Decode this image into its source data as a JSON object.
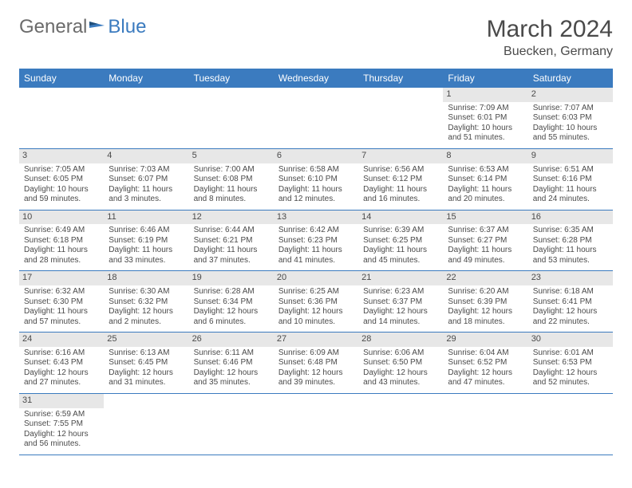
{
  "logo": {
    "part1": "General",
    "part2": "Blue"
  },
  "title": "March 2024",
  "location": "Buecken, Germany",
  "colors": {
    "header_bg": "#3b7bbf",
    "header_text": "#ffffff",
    "daynum_bg": "#e7e7e7",
    "cell_border": "#3b7bbf",
    "body_text": "#4a4a4a",
    "logo_gray": "#6b6b6b",
    "logo_blue": "#3b7bbf"
  },
  "day_headers": [
    "Sunday",
    "Monday",
    "Tuesday",
    "Wednesday",
    "Thursday",
    "Friday",
    "Saturday"
  ],
  "weeks": [
    [
      {
        "empty": true
      },
      {
        "empty": true
      },
      {
        "empty": true
      },
      {
        "empty": true
      },
      {
        "empty": true
      },
      {
        "n": "1",
        "sr": "Sunrise: 7:09 AM",
        "ss": "Sunset: 6:01 PM",
        "d1": "Daylight: 10 hours",
        "d2": "and 51 minutes."
      },
      {
        "n": "2",
        "sr": "Sunrise: 7:07 AM",
        "ss": "Sunset: 6:03 PM",
        "d1": "Daylight: 10 hours",
        "d2": "and 55 minutes."
      }
    ],
    [
      {
        "n": "3",
        "sr": "Sunrise: 7:05 AM",
        "ss": "Sunset: 6:05 PM",
        "d1": "Daylight: 10 hours",
        "d2": "and 59 minutes."
      },
      {
        "n": "4",
        "sr": "Sunrise: 7:03 AM",
        "ss": "Sunset: 6:07 PM",
        "d1": "Daylight: 11 hours",
        "d2": "and 3 minutes."
      },
      {
        "n": "5",
        "sr": "Sunrise: 7:00 AM",
        "ss": "Sunset: 6:08 PM",
        "d1": "Daylight: 11 hours",
        "d2": "and 8 minutes."
      },
      {
        "n": "6",
        "sr": "Sunrise: 6:58 AM",
        "ss": "Sunset: 6:10 PM",
        "d1": "Daylight: 11 hours",
        "d2": "and 12 minutes."
      },
      {
        "n": "7",
        "sr": "Sunrise: 6:56 AM",
        "ss": "Sunset: 6:12 PM",
        "d1": "Daylight: 11 hours",
        "d2": "and 16 minutes."
      },
      {
        "n": "8",
        "sr": "Sunrise: 6:53 AM",
        "ss": "Sunset: 6:14 PM",
        "d1": "Daylight: 11 hours",
        "d2": "and 20 minutes."
      },
      {
        "n": "9",
        "sr": "Sunrise: 6:51 AM",
        "ss": "Sunset: 6:16 PM",
        "d1": "Daylight: 11 hours",
        "d2": "and 24 minutes."
      }
    ],
    [
      {
        "n": "10",
        "sr": "Sunrise: 6:49 AM",
        "ss": "Sunset: 6:18 PM",
        "d1": "Daylight: 11 hours",
        "d2": "and 28 minutes."
      },
      {
        "n": "11",
        "sr": "Sunrise: 6:46 AM",
        "ss": "Sunset: 6:19 PM",
        "d1": "Daylight: 11 hours",
        "d2": "and 33 minutes."
      },
      {
        "n": "12",
        "sr": "Sunrise: 6:44 AM",
        "ss": "Sunset: 6:21 PM",
        "d1": "Daylight: 11 hours",
        "d2": "and 37 minutes."
      },
      {
        "n": "13",
        "sr": "Sunrise: 6:42 AM",
        "ss": "Sunset: 6:23 PM",
        "d1": "Daylight: 11 hours",
        "d2": "and 41 minutes."
      },
      {
        "n": "14",
        "sr": "Sunrise: 6:39 AM",
        "ss": "Sunset: 6:25 PM",
        "d1": "Daylight: 11 hours",
        "d2": "and 45 minutes."
      },
      {
        "n": "15",
        "sr": "Sunrise: 6:37 AM",
        "ss": "Sunset: 6:27 PM",
        "d1": "Daylight: 11 hours",
        "d2": "and 49 minutes."
      },
      {
        "n": "16",
        "sr": "Sunrise: 6:35 AM",
        "ss": "Sunset: 6:28 PM",
        "d1": "Daylight: 11 hours",
        "d2": "and 53 minutes."
      }
    ],
    [
      {
        "n": "17",
        "sr": "Sunrise: 6:32 AM",
        "ss": "Sunset: 6:30 PM",
        "d1": "Daylight: 11 hours",
        "d2": "and 57 minutes."
      },
      {
        "n": "18",
        "sr": "Sunrise: 6:30 AM",
        "ss": "Sunset: 6:32 PM",
        "d1": "Daylight: 12 hours",
        "d2": "and 2 minutes."
      },
      {
        "n": "19",
        "sr": "Sunrise: 6:28 AM",
        "ss": "Sunset: 6:34 PM",
        "d1": "Daylight: 12 hours",
        "d2": "and 6 minutes."
      },
      {
        "n": "20",
        "sr": "Sunrise: 6:25 AM",
        "ss": "Sunset: 6:36 PM",
        "d1": "Daylight: 12 hours",
        "d2": "and 10 minutes."
      },
      {
        "n": "21",
        "sr": "Sunrise: 6:23 AM",
        "ss": "Sunset: 6:37 PM",
        "d1": "Daylight: 12 hours",
        "d2": "and 14 minutes."
      },
      {
        "n": "22",
        "sr": "Sunrise: 6:20 AM",
        "ss": "Sunset: 6:39 PM",
        "d1": "Daylight: 12 hours",
        "d2": "and 18 minutes."
      },
      {
        "n": "23",
        "sr": "Sunrise: 6:18 AM",
        "ss": "Sunset: 6:41 PM",
        "d1": "Daylight: 12 hours",
        "d2": "and 22 minutes."
      }
    ],
    [
      {
        "n": "24",
        "sr": "Sunrise: 6:16 AM",
        "ss": "Sunset: 6:43 PM",
        "d1": "Daylight: 12 hours",
        "d2": "and 27 minutes."
      },
      {
        "n": "25",
        "sr": "Sunrise: 6:13 AM",
        "ss": "Sunset: 6:45 PM",
        "d1": "Daylight: 12 hours",
        "d2": "and 31 minutes."
      },
      {
        "n": "26",
        "sr": "Sunrise: 6:11 AM",
        "ss": "Sunset: 6:46 PM",
        "d1": "Daylight: 12 hours",
        "d2": "and 35 minutes."
      },
      {
        "n": "27",
        "sr": "Sunrise: 6:09 AM",
        "ss": "Sunset: 6:48 PM",
        "d1": "Daylight: 12 hours",
        "d2": "and 39 minutes."
      },
      {
        "n": "28",
        "sr": "Sunrise: 6:06 AM",
        "ss": "Sunset: 6:50 PM",
        "d1": "Daylight: 12 hours",
        "d2": "and 43 minutes."
      },
      {
        "n": "29",
        "sr": "Sunrise: 6:04 AM",
        "ss": "Sunset: 6:52 PM",
        "d1": "Daylight: 12 hours",
        "d2": "and 47 minutes."
      },
      {
        "n": "30",
        "sr": "Sunrise: 6:01 AM",
        "ss": "Sunset: 6:53 PM",
        "d1": "Daylight: 12 hours",
        "d2": "and 52 minutes."
      }
    ],
    [
      {
        "n": "31",
        "sr": "Sunrise: 6:59 AM",
        "ss": "Sunset: 7:55 PM",
        "d1": "Daylight: 12 hours",
        "d2": "and 56 minutes."
      },
      {
        "empty": true
      },
      {
        "empty": true
      },
      {
        "empty": true
      },
      {
        "empty": true
      },
      {
        "empty": true
      },
      {
        "empty": true
      }
    ]
  ]
}
